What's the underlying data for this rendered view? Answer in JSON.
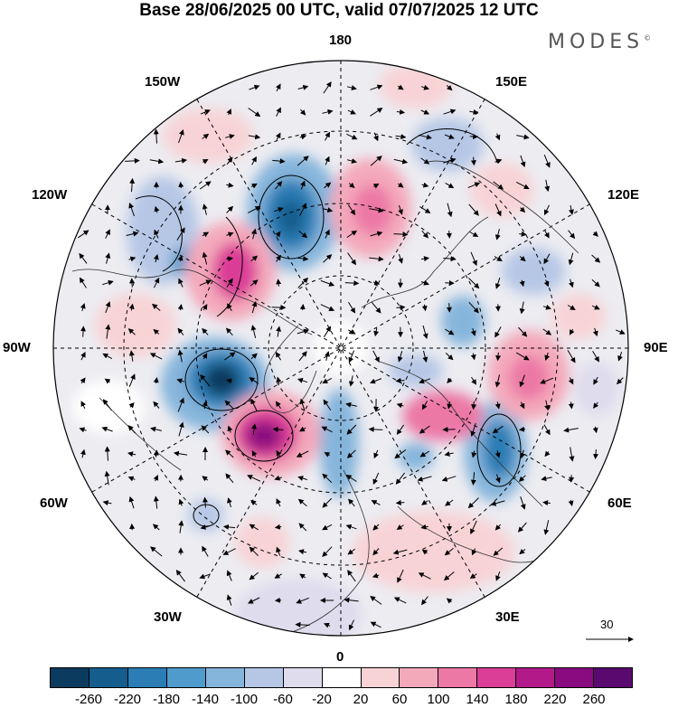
{
  "header": {
    "title": "Base 28/06/2025 00 UTC, valid 07/07/2025 12 UTC",
    "brand": "MODES",
    "brand_mark": "©"
  },
  "map": {
    "projection": "north polar stereographic",
    "longitude_labels": {
      "top": "180",
      "bottom": "0",
      "left": "90W",
      "right": "90E",
      "upper_left_1": "150W",
      "upper_left_2": "120W",
      "lower_left_1": "60W",
      "lower_left_2": "30W",
      "upper_right_1": "150E",
      "upper_right_2": "120E",
      "lower_right_1": "60E",
      "lower_right_2": "30E"
    },
    "wind_reference_label": "30"
  },
  "colorbar": {
    "colors": [
      "#0b3b5e",
      "#145d8c",
      "#2b7db5",
      "#4f9bcb",
      "#86b5dc",
      "#b6c7e6",
      "#dedced",
      "#ffffff",
      "#f8d3d6",
      "#f4a9bb",
      "#ec78a6",
      "#db3e96",
      "#b21a8a",
      "#8a0a7f",
      "#5a0a6e"
    ],
    "ticks": [
      "-260",
      "-220",
      "-180",
      "-140",
      "-100",
      "-60",
      "-20",
      "20",
      "60",
      "100",
      "140",
      "180",
      "220",
      "260"
    ]
  }
}
